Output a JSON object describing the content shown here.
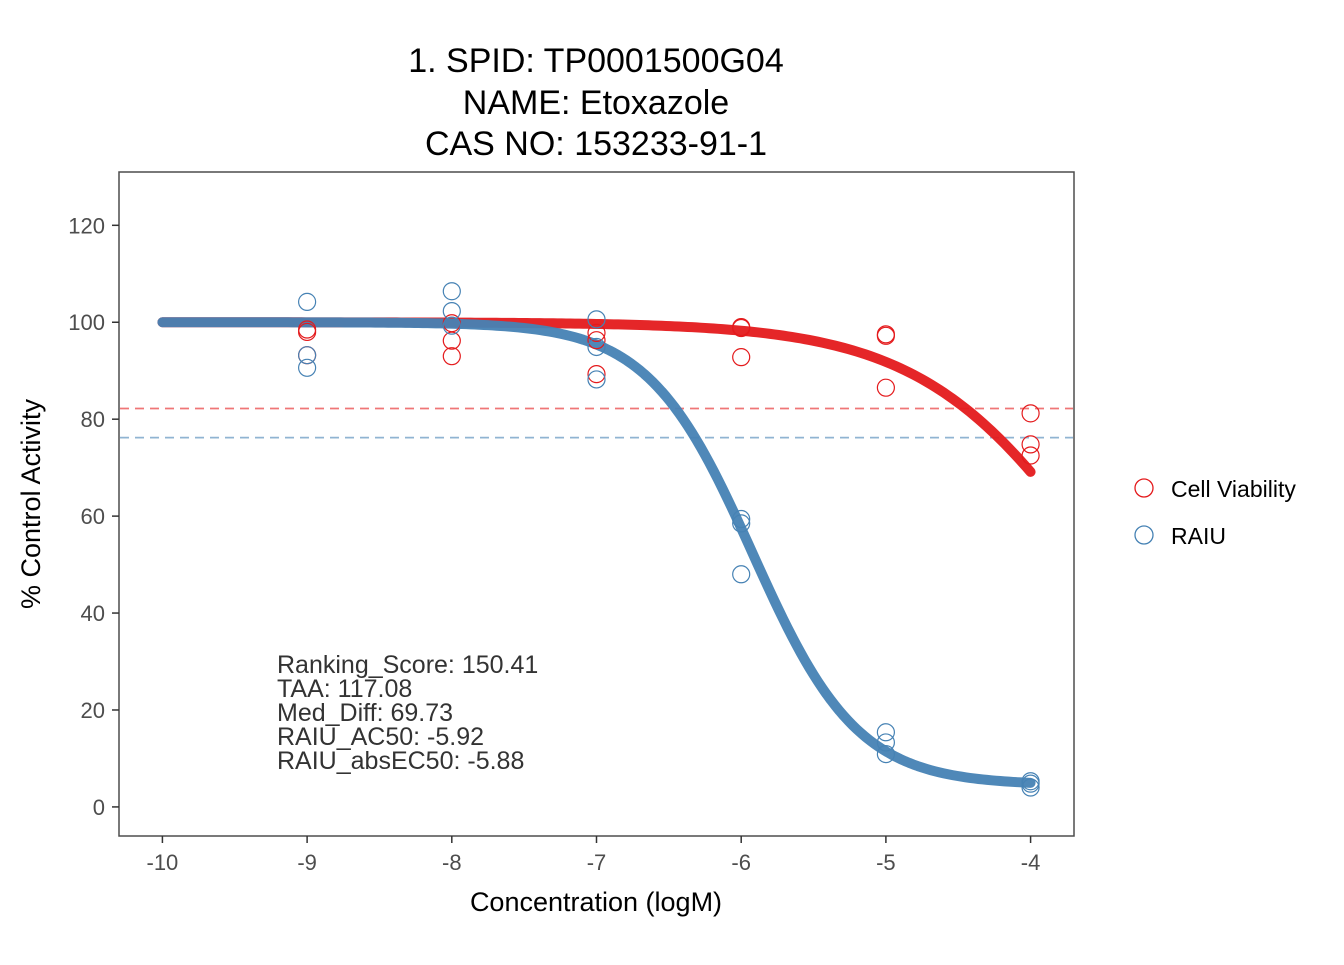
{
  "chart_data": {
    "type": "scatter",
    "title_lines": [
      "1. SPID: TP0001500G04",
      "NAME: Etoxazole",
      "CAS NO: 153233-91-1"
    ],
    "xlabel": "Concentration (logM)",
    "ylabel": "% Control Activity",
    "xlim": [
      -10.3,
      -3.7
    ],
    "ylim": [
      -6,
      131
    ],
    "x_ticks": [
      -10,
      -9,
      -8,
      -7,
      -6,
      -5,
      -4
    ],
    "x_tick_labels": [
      "-10",
      "-9",
      "-8",
      "-7",
      "-6",
      "-5",
      "-4"
    ],
    "y_ticks": [
      0,
      20,
      40,
      60,
      80,
      100,
      120
    ],
    "y_tick_labels": [
      "0",
      "20",
      "40",
      "60",
      "80",
      "100",
      "120"
    ],
    "grid": false,
    "legend_position": "right",
    "series": [
      {
        "name": "Cell Viability",
        "color": "#e41a1c",
        "points": [
          {
            "x": -9,
            "y": 98.5
          },
          {
            "x": -9,
            "y": 98.0
          },
          {
            "x": -9,
            "y": 93.2
          },
          {
            "x": -8,
            "y": 99.8
          },
          {
            "x": -8,
            "y": 96.2
          },
          {
            "x": -8,
            "y": 93.0
          },
          {
            "x": -7,
            "y": 97.8
          },
          {
            "x": -7,
            "y": 96.3
          },
          {
            "x": -7,
            "y": 89.3
          },
          {
            "x": -6,
            "y": 99.0
          },
          {
            "x": -6,
            "y": 98.8
          },
          {
            "x": -6,
            "y": 92.8
          },
          {
            "x": -5,
            "y": 97.5
          },
          {
            "x": -5,
            "y": 97.2
          },
          {
            "x": -5,
            "y": 86.5
          },
          {
            "x": -4,
            "y": 81.2
          },
          {
            "x": -4,
            "y": 74.8
          },
          {
            "x": -4,
            "y": 72.5
          }
        ],
        "fit": {
          "top": 100,
          "bottom": 0,
          "logac50": -3.5,
          "hill": 0.7
        },
        "threshold": 82.2
      },
      {
        "name": "RAIU",
        "color": "#4682b4",
        "points": [
          {
            "x": -9,
            "y": 104.2
          },
          {
            "x": -9,
            "y": 93.2
          },
          {
            "x": -9,
            "y": 90.6
          },
          {
            "x": -8,
            "y": 106.4
          },
          {
            "x": -8,
            "y": 102.3
          },
          {
            "x": -8,
            "y": 99.3
          },
          {
            "x": -7,
            "y": 100.6
          },
          {
            "x": -7,
            "y": 94.9
          },
          {
            "x": -7,
            "y": 88.2
          },
          {
            "x": -6,
            "y": 59.4
          },
          {
            "x": -6,
            "y": 58.5
          },
          {
            "x": -6,
            "y": 48.0
          },
          {
            "x": -5,
            "y": 15.4
          },
          {
            "x": -5,
            "y": 13.3
          },
          {
            "x": -5,
            "y": 10.9
          },
          {
            "x": -4,
            "y": 5.3
          },
          {
            "x": -4,
            "y": 4.8
          },
          {
            "x": -4,
            "y": 4.0
          }
        ],
        "fit": {
          "top": 100,
          "bottom": 4.5,
          "logac50": -5.92,
          "hill": 1.2
        },
        "threshold": 76.2
      }
    ],
    "annotations": [
      "Ranking_Score: 150.41",
      "TAA: 117.08",
      "Med_Diff: 69.73",
      "RAIU_AC50: -5.92",
      "RAIU_absEC50: -5.88"
    ]
  }
}
